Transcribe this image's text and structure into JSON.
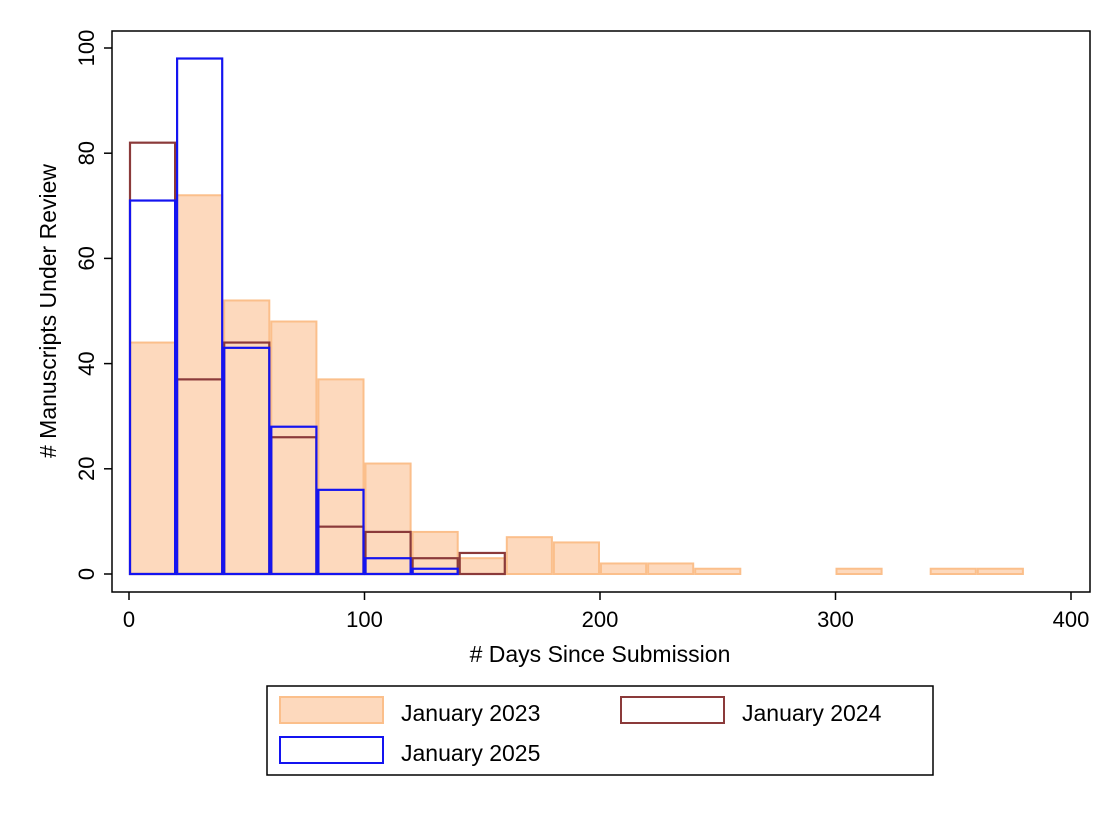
{
  "chart_data": {
    "type": "bar",
    "title": "",
    "xlabel": "# Days Since Submission",
    "ylabel": "# Manuscripts Under Review",
    "xlim": [
      0,
      400
    ],
    "ylim": [
      0,
      100
    ],
    "xticks": [
      0,
      100,
      200,
      300,
      400
    ],
    "yticks": [
      0,
      20,
      40,
      60,
      80,
      100
    ],
    "grid": false,
    "legend_position": "bottom",
    "bin_width": 20,
    "series": [
      {
        "name": "January 2023",
        "style": "filled",
        "fill": "#fdd9bd",
        "stroke": "#fbbf8b",
        "bins": [
          {
            "x": 0,
            "value": 44
          },
          {
            "x": 20,
            "value": 72
          },
          {
            "x": 40,
            "value": 52
          },
          {
            "x": 60,
            "value": 48
          },
          {
            "x": 80,
            "value": 37
          },
          {
            "x": 100,
            "value": 21
          },
          {
            "x": 120,
            "value": 8
          },
          {
            "x": 140,
            "value": 3
          },
          {
            "x": 160,
            "value": 7
          },
          {
            "x": 180,
            "value": 6
          },
          {
            "x": 200,
            "value": 2
          },
          {
            "x": 220,
            "value": 2
          },
          {
            "x": 240,
            "value": 1
          },
          {
            "x": 300,
            "value": 1
          },
          {
            "x": 340,
            "value": 1
          },
          {
            "x": 360,
            "value": 1
          }
        ]
      },
      {
        "name": "January 2024",
        "style": "outline",
        "fill": "none",
        "stroke": "#8b3a3a",
        "bins": [
          {
            "x": 0,
            "value": 82
          },
          {
            "x": 20,
            "value": 37
          },
          {
            "x": 40,
            "value": 44
          },
          {
            "x": 60,
            "value": 26
          },
          {
            "x": 80,
            "value": 9
          },
          {
            "x": 100,
            "value": 8
          },
          {
            "x": 120,
            "value": 3
          },
          {
            "x": 140,
            "value": 4
          }
        ]
      },
      {
        "name": "January 2025",
        "style": "outline",
        "fill": "none",
        "stroke": "#1414f0",
        "bins": [
          {
            "x": 0,
            "value": 71
          },
          {
            "x": 20,
            "value": 98
          },
          {
            "x": 40,
            "value": 43
          },
          {
            "x": 60,
            "value": 28
          },
          {
            "x": 80,
            "value": 16
          },
          {
            "x": 100,
            "value": 3
          },
          {
            "x": 120,
            "value": 1
          }
        ]
      }
    ]
  }
}
